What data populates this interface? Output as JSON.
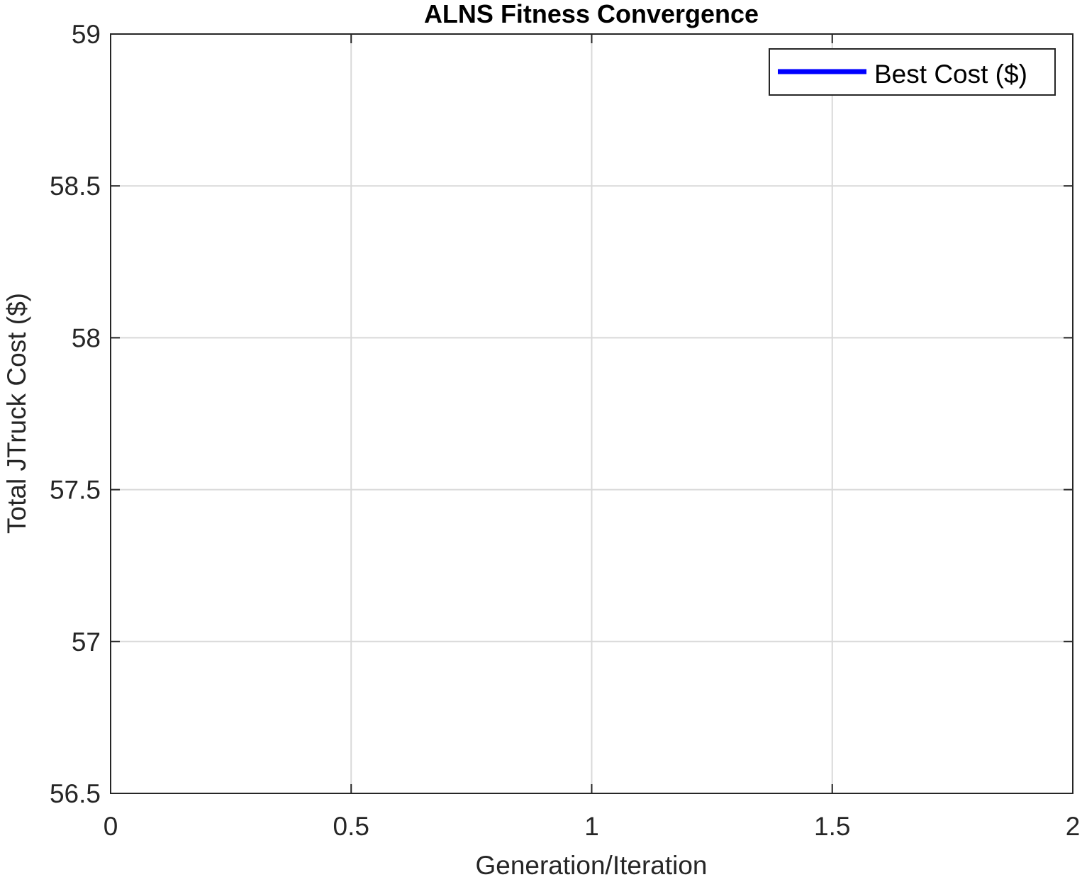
{
  "chart_data": {
    "type": "line",
    "title": "ALNS Fitness Convergence",
    "xlabel": "Generation/Iteration",
    "ylabel": "Total JTruck Cost ($)",
    "xlim": [
      0,
      2
    ],
    "ylim": [
      56.5,
      59
    ],
    "xticks": [
      0,
      0.5,
      1,
      1.5,
      2
    ],
    "xtick_labels": [
      "0",
      "0.5",
      "1",
      "1.5",
      "2"
    ],
    "yticks": [
      56.5,
      57,
      57.5,
      58,
      58.5,
      59
    ],
    "ytick_labels": [
      "56.5",
      "57",
      "57.5",
      "58",
      "58.5",
      "59"
    ],
    "grid": true,
    "legend_position": "top-right",
    "series": [
      {
        "name": "Best Cost ($)",
        "color": "#0000ff",
        "x": [],
        "y": []
      }
    ]
  }
}
